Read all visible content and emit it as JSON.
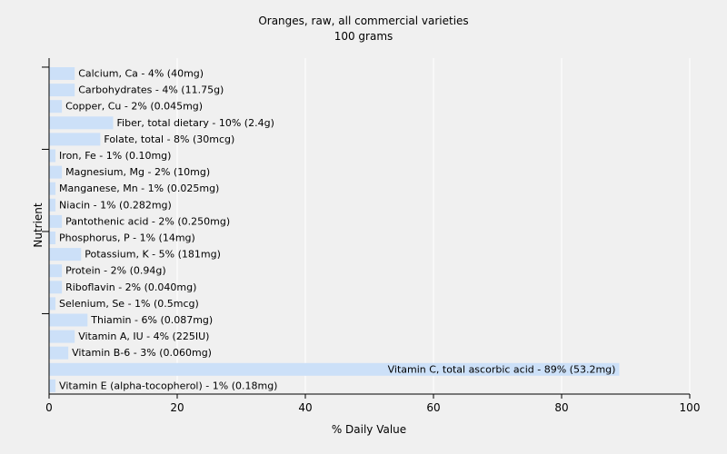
{
  "chart_data": {
    "type": "bar",
    "orientation": "horizontal",
    "title": "Oranges, raw, all commercial varieties",
    "subtitle": "100 grams",
    "xlabel": "% Daily Value",
    "ylabel": "Nutrient",
    "xlim": [
      0,
      100
    ],
    "xticks": [
      0,
      20,
      40,
      60,
      80,
      100
    ],
    "grid": true,
    "bar_color": "#cce0f8",
    "grid_color": "#ffffff",
    "plot_background": "#f0f0f0",
    "categories": [
      "Calcium, Ca",
      "Carbohydrates",
      "Copper, Cu",
      "Fiber, total dietary",
      "Folate, total",
      "Iron, Fe",
      "Magnesium, Mg",
      "Manganese, Mn",
      "Niacin",
      "Pantothenic acid",
      "Phosphorus, P",
      "Potassium, K",
      "Protein",
      "Riboflavin",
      "Selenium, Se",
      "Thiamin",
      "Vitamin A, IU",
      "Vitamin B-6",
      "Vitamin C, total ascorbic acid",
      "Vitamin E (alpha-tocopherol)"
    ],
    "values": [
      4,
      4,
      2,
      10,
      8,
      1,
      2,
      1,
      1,
      2,
      1,
      5,
      2,
      2,
      1,
      6,
      4,
      3,
      89,
      1
    ],
    "labels": [
      "Calcium, Ca - 4% (40mg)",
      "Carbohydrates - 4% (11.75g)",
      "Copper, Cu - 2% (0.045mg)",
      "Fiber, total dietary - 10% (2.4g)",
      "Folate, total - 8% (30mcg)",
      "Iron, Fe - 1% (0.10mg)",
      "Magnesium, Mg - 2% (10mg)",
      "Manganese, Mn - 1% (0.025mg)",
      "Niacin - 1% (0.282mg)",
      "Pantothenic acid - 2% (0.250mg)",
      "Phosphorus, P - 1% (14mg)",
      "Potassium, K - 5% (181mg)",
      "Protein - 2% (0.94g)",
      "Riboflavin - 2% (0.040mg)",
      "Selenium, Se - 1% (0.5mcg)",
      "Thiamin - 6% (0.087mg)",
      "Vitamin A, IU - 4% (225IU)",
      "Vitamin B-6 - 3% (0.060mg)",
      "Vitamin C, total ascorbic acid - 89% (53.2mg)",
      "Vitamin E (alpha-tocopherol) - 1% (0.18mg)"
    ]
  }
}
